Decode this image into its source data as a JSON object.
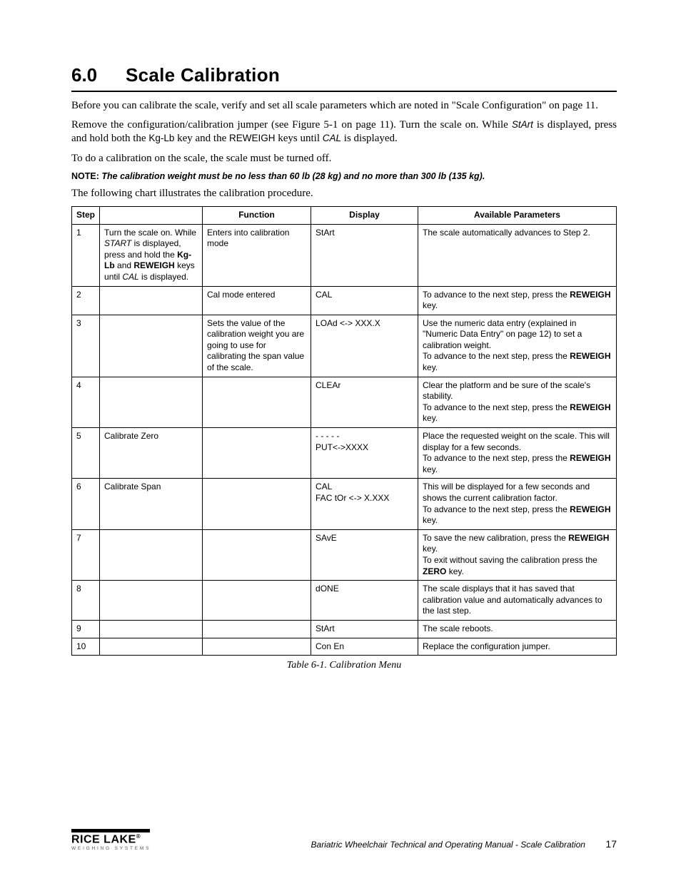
{
  "heading": {
    "number": "6.0",
    "title": "Scale Calibration"
  },
  "para1": "Before you can calibrate the scale, verify and set all scale parameters which are noted in \"Scale Configuration\" on page 11.",
  "para2_a": "Remove the configuration/calibration jumper (see Figure 5-1 on page 11). Turn the scale on. While ",
  "para2_start": "StArt",
  "para2_b": " is displayed, press and hold both the ",
  "para2_kglb": "Kg-Lb",
  "para2_c": " key and the ",
  "para2_reweigh": "REWEIGH",
  "para2_d": " keys until ",
  "para2_cal": "CAL",
  "para2_e": " is displayed.",
  "para3": "To do a calibration on the scale, the scale must be turned off.",
  "note": {
    "label": "NOTE:",
    "body": "The calibration weight must be no less than 60 lb (28 kg) and no more than 300 lb (135 kg)."
  },
  "para4": "The following chart illustrates the calibration procedure.",
  "table": {
    "headers": [
      "Step",
      "",
      "Function",
      "Display",
      "Available Parameters"
    ],
    "rows": [
      {
        "step": "1",
        "action": "Turn the scale on. While <i>START</i> is displayed, press and hold the <b>Kg-Lb</b> and <b>REWEIGH</b> keys until <i>CAL</i> is displayed.",
        "func": "Enters into calibration mode",
        "display": "StArt",
        "params": "The scale automatically advances to Step 2."
      },
      {
        "step": "2",
        "action": "",
        "func": "Cal mode entered",
        "display": "CAL",
        "params": "To advance to the next step, press the <b>REWEIGH</b> key."
      },
      {
        "step": "3",
        "action": "",
        "func": "Sets the value of the calibration weight you are going to use for calibrating the span value of the scale.",
        "display": "LOAd &lt;-&gt; XXX.X",
        "params": "Use the numeric data entry (explained in \"Numeric Data Entry\" on page 12) to set a calibration weight.<br>To advance to the next step, press the <b>REWEIGH</b> key."
      },
      {
        "step": "4",
        "action": "",
        "func": "",
        "display": "CLEAr",
        "params": "Clear the platform and be sure of the scale's stability.<br>To advance to the next step, press the <b>REWEIGH</b> key."
      },
      {
        "step": "5",
        "action": "Calibrate Zero",
        "func": "",
        "display": "- - - - -<br>PUT&lt;-&gt;XXXX",
        "params": "Place the requested weight on the scale. This will  display for a few seconds.<br>To advance to the next step, press the <b>REWEIGH</b> key."
      },
      {
        "step": "6",
        "action": "Calibrate Span",
        "func": "",
        "display": "CAL<br>FAC tOr &lt;-&gt; X.XXX",
        "params": "This will be displayed for a few seconds and shows the current calibration factor.<br>To advance to the next step, press the <b>REWEIGH</b> key."
      },
      {
        "step": "7",
        "action": "",
        "func": "",
        "display": "SAvE",
        "params": "To save the new calibration, press the <b>REWEIGH</b> key.<br>To exit without saving the calibration press the <b>ZERO</b> key."
      },
      {
        "step": "8",
        "action": "",
        "func": "",
        "display": "dONE",
        "params": "The scale displays that it has saved that calibration value and automatically advances to the last step."
      },
      {
        "step": "9",
        "action": "",
        "func": "",
        "display": "StArt",
        "params": "The scale reboots."
      },
      {
        "step": "10",
        "action": "",
        "func": "",
        "display": "Con En",
        "params": "Replace the configuration jumper."
      }
    ]
  },
  "caption": "Table 6-1. Calibration Menu",
  "footer": {
    "logo_main": "RICE LAKE",
    "logo_sub": "WEIGHING SYSTEMS",
    "text": "Bariatric Wheelchair Technical and Operating Manual - Scale Calibration",
    "page": "17"
  }
}
